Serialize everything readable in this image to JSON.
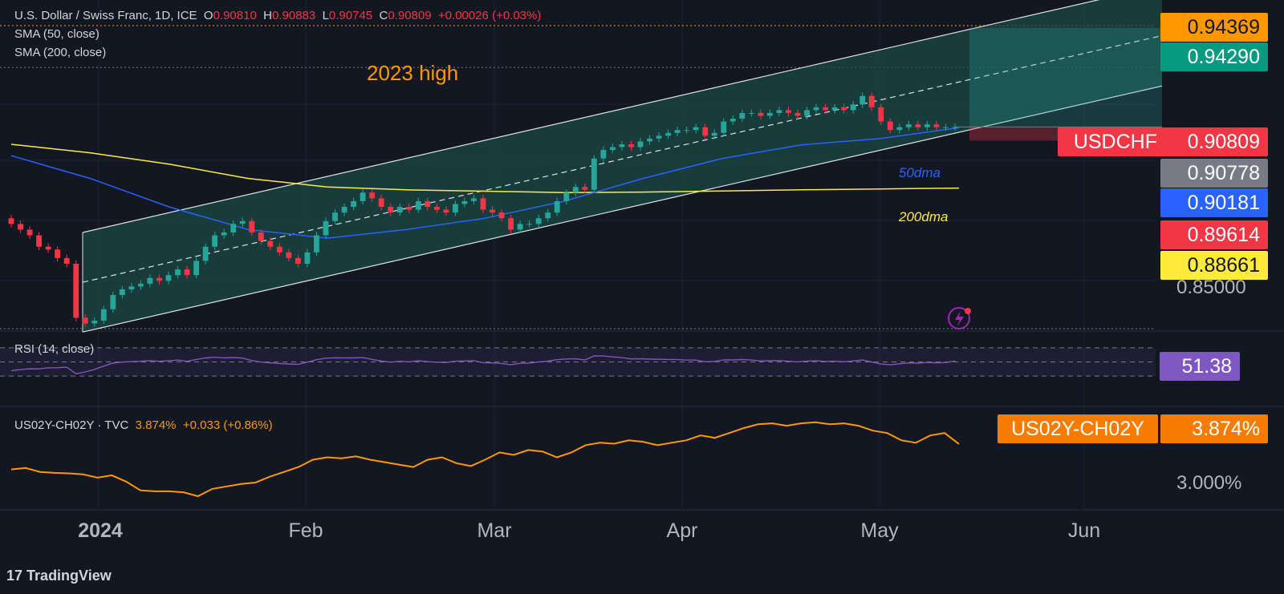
{
  "header": {
    "title": "U.S. Dollar / Swiss Franc, 1D, ICE",
    "o_label": "O",
    "o_value": "0.90810",
    "h_label": "H",
    "h_value": "0.90883",
    "l_label": "L",
    "l_value": "0.90745",
    "c_label": "C",
    "c_value": "0.90809",
    "change": "+0.00026 (+0.03%)",
    "sma50": "SMA (50, close)",
    "sma200": "SMA (200, close)"
  },
  "annotations": {
    "high_2023": "2023 high",
    "dma50": "50dma",
    "dma200": "200dma"
  },
  "price_tags": {
    "high_2023": "0.94369",
    "channel_top": "0.94290",
    "symbol": "USDCHF",
    "last": "0.90809",
    "sma50_tag": "0.90778",
    "sma_blue": "0.90181",
    "low_tag": "0.89614",
    "sma200": "0.88661",
    "axis_085": "0.85000"
  },
  "rsi": {
    "label": "RSI (14, close)",
    "value": "51.38"
  },
  "spread": {
    "label": "US02Y-CH02Y · TVC",
    "value": "3.874%",
    "change": "+0.033 (+0.86%)",
    "tag_symbol": "US02Y-CH02Y",
    "tag_value": "3.874%",
    "axis_300": "3.000%"
  },
  "x_axis": {
    "year": "2024",
    "months": [
      "Feb",
      "Mar",
      "Apr",
      "May",
      "Jun"
    ]
  },
  "footer": {
    "brand": "TradingView"
  },
  "colors": {
    "up": "#26a69a",
    "down": "#f23645",
    "sma50": "#2962ff",
    "sma200": "#ffeb3b",
    "rsi": "#7e57c2",
    "spread": "#ff9800",
    "channel_fill": "#1b4a44"
  },
  "chart_data": [
    {
      "type": "line",
      "name": "USDCHF daily candles (approx. close)",
      "x_start": "2023-12-08",
      "x_end": "2024-05-14",
      "close": [
        0.874,
        0.872,
        0.87,
        0.866,
        0.865,
        0.862,
        0.86,
        0.841,
        0.839,
        0.84,
        0.844,
        0.849,
        0.851,
        0.852,
        0.853,
        0.855,
        0.854,
        0.856,
        0.858,
        0.856,
        0.861,
        0.866,
        0.87,
        0.871,
        0.874,
        0.875,
        0.871,
        0.868,
        0.866,
        0.864,
        0.862,
        0.86,
        0.864,
        0.87,
        0.875,
        0.878,
        0.88,
        0.882,
        0.885,
        0.883,
        0.88,
        0.878,
        0.88,
        0.879,
        0.882,
        0.88,
        0.879,
        0.878,
        0.881,
        0.882,
        0.883,
        0.879,
        0.878,
        0.876,
        0.872,
        0.874,
        0.874,
        0.876,
        0.878,
        0.882,
        0.885,
        0.887,
        0.886,
        0.897,
        0.9,
        0.901,
        0.902,
        0.901,
        0.903,
        0.904,
        0.905,
        0.906,
        0.907,
        0.907,
        0.908,
        0.905,
        0.906,
        0.91,
        0.911,
        0.913,
        0.913,
        0.912,
        0.913,
        0.914,
        0.913,
        0.912,
        0.914,
        0.915,
        0.914,
        0.915,
        0.914,
        0.916,
        0.919,
        0.915,
        0.91,
        0.907,
        0.908,
        0.909,
        0.908,
        0.909,
        0.908,
        0.908,
        0.9081
      ],
      "sma50": [
        0.898,
        0.89,
        0.88,
        0.872,
        0.869,
        0.872,
        0.876,
        0.882,
        0.89,
        0.897,
        0.9018,
        0.904,
        0.9078
      ],
      "sma200": [
        0.902,
        0.899,
        0.895,
        0.89,
        0.887,
        0.886,
        0.8855,
        0.885,
        0.8852,
        0.8856,
        0.886,
        0.8863,
        0.8866
      ],
      "channel": {
        "start": "2023-12-28",
        "end": "2024-06-15",
        "lower_start": 0.836,
        "upper_start": 0.871,
        "lower_end": 0.9225,
        "upper_end": 0.9579
      }
    },
    {
      "type": "line",
      "name": "RSI (14, close)",
      "bands": [
        30,
        70
      ],
      "last": 51.38
    },
    {
      "type": "line",
      "name": "US02Y-CH02Y",
      "values": [
        3.35,
        3.38,
        3.3,
        3.28,
        3.27,
        3.25,
        3.18,
        3.23,
        3.1,
        2.92,
        2.9,
        2.9,
        2.88,
        2.8,
        2.95,
        3.0,
        3.05,
        3.08,
        3.2,
        3.3,
        3.4,
        3.55,
        3.6,
        3.58,
        3.62,
        3.55,
        3.5,
        3.45,
        3.4,
        3.55,
        3.6,
        3.48,
        3.42,
        3.55,
        3.7,
        3.65,
        3.75,
        3.72,
        3.6,
        3.7,
        3.85,
        3.9,
        3.88,
        3.95,
        3.92,
        3.85,
        3.9,
        3.95,
        4.05,
        4.0,
        4.1,
        4.2,
        4.28,
        4.3,
        4.25,
        4.3,
        4.32,
        4.28,
        4.3,
        4.25,
        4.15,
        4.1,
        3.95,
        3.9,
        4.05,
        4.1,
        3.874
      ],
      "last": "3.874%"
    }
  ]
}
